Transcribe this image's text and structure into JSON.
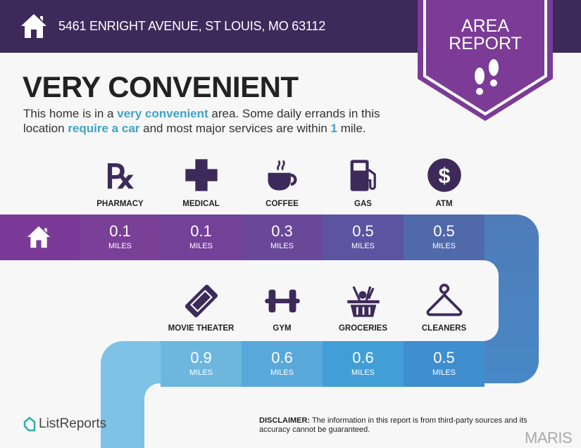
{
  "header": {
    "address": "5461 ENRIGHT AVENUE, ST LOUIS, MO 63112",
    "badge_line1": "AREA",
    "badge_line2": "REPORT",
    "home_icon": "house-icon",
    "badge_icon": "footprints-icon"
  },
  "headline": "VERY CONVENIENT",
  "description": {
    "p1": "This home is in a ",
    "h1": "very convenient",
    "p2": " area. Some daily errands in this location ",
    "h2": "require a car",
    "p3": " and most major services are within ",
    "h3": "1",
    "p4": " mile."
  },
  "colors": {
    "purple_dark": "#3d2a5b",
    "badge": "#7b3b96",
    "accent": "#3ea3c6"
  },
  "row1": [
    {
      "label": "PHARMACY",
      "value": "0.1",
      "unit": "MILES",
      "icon": "rx-icon",
      "color": "#7a3f97"
    },
    {
      "label": "MEDICAL",
      "value": "0.1",
      "unit": "MILES",
      "icon": "medical-cross-icon",
      "color": "#744199"
    },
    {
      "label": "COFFEE",
      "value": "0.3",
      "unit": "MILES",
      "icon": "coffee-cup-icon",
      "color": "#694799"
    },
    {
      "label": "GAS",
      "value": "0.5",
      "unit": "MILES",
      "icon": "gas-pump-icon",
      "color": "#5c54a0"
    },
    {
      "label": "ATM",
      "value": "0.5",
      "unit": "MILES",
      "icon": "dollar-icon",
      "color": "#5069ab"
    }
  ],
  "row2": [
    {
      "label": "MOVIE THEATER",
      "value": "0.9",
      "unit": "MILES",
      "icon": "ticket-icon",
      "color": "#6db7df"
    },
    {
      "label": "GYM",
      "value": "0.6",
      "unit": "MILES",
      "icon": "dumbbell-icon",
      "color": "#58a9da"
    },
    {
      "label": "GROCERIES",
      "value": "0.6",
      "unit": "MILES",
      "icon": "grocery-basket-icon",
      "color": "#429ed6"
    },
    {
      "label": "CLEANERS",
      "value": "0.5",
      "unit": "MILES",
      "icon": "hanger-icon",
      "color": "#3f8ecf"
    }
  ],
  "footer": {
    "logo": "ListReports",
    "disclaimer_label": "DISCLAIMER:",
    "disclaimer": " The information in this report is from third-party sources and its accuracy cannot be guaranteed.",
    "watermark": "MARIS"
  }
}
